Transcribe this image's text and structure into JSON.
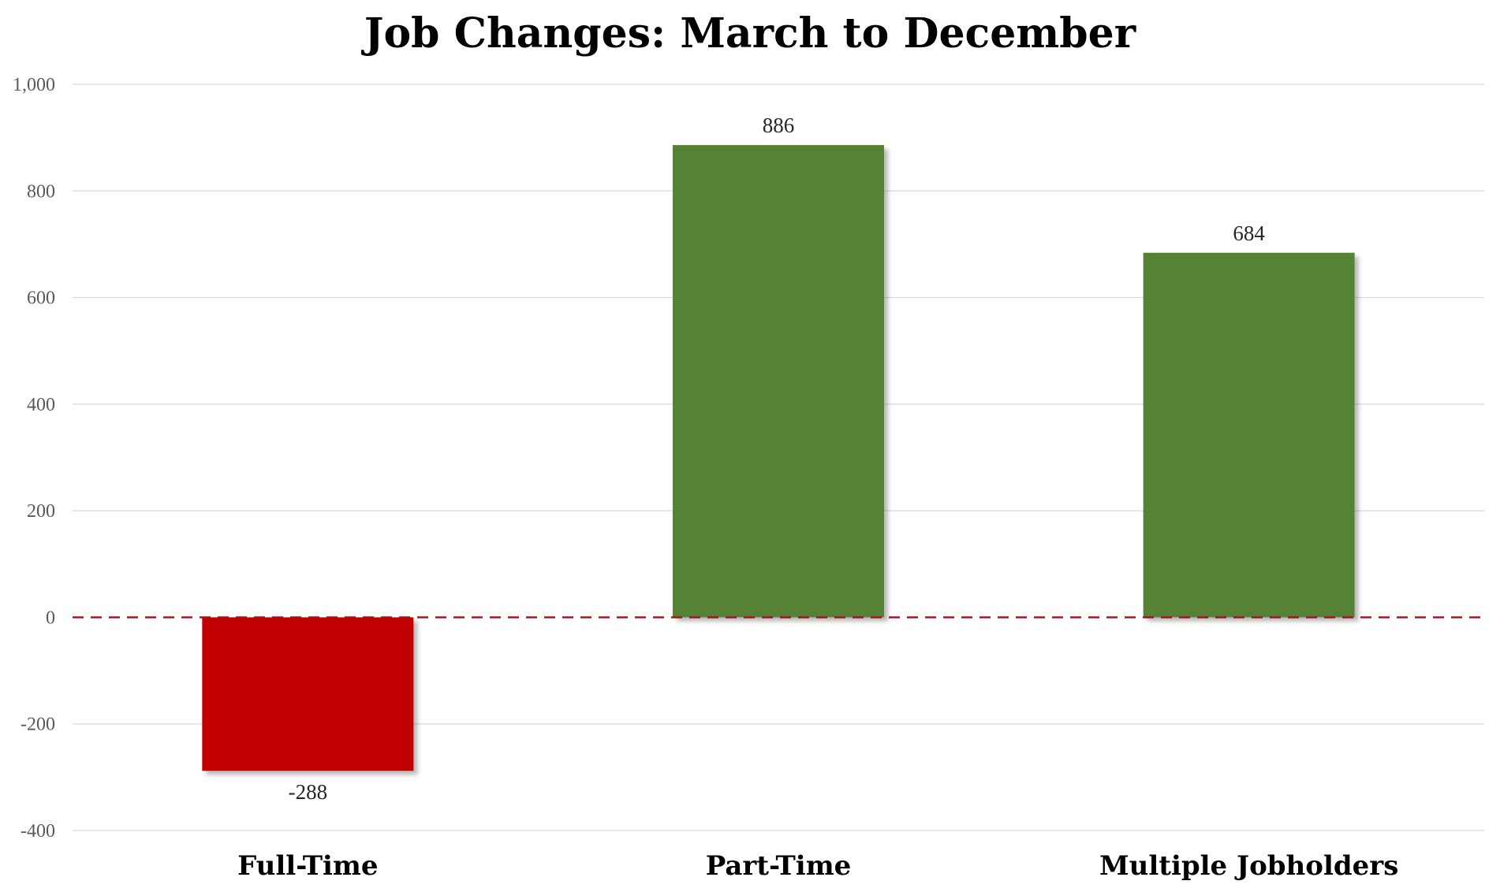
{
  "chart_data": {
    "type": "bar",
    "title": "Job Changes: March to December",
    "categories": [
      "Full-Time",
      "Part-Time",
      "Multiple Jobholders"
    ],
    "values": [
      -288,
      886,
      684
    ],
    "data_labels": [
      "-288",
      "886",
      "684"
    ],
    "bar_colors": [
      "#c00000",
      "#548235",
      "#548235"
    ],
    "ylim": [
      -400,
      1000
    ],
    "yticks": [
      1000,
      800,
      600,
      400,
      200,
      0,
      -200,
      -400
    ],
    "ytick_labels": [
      "1,000",
      "800",
      "600",
      "400",
      "200",
      "0",
      "-200",
      "-400"
    ],
    "xlabel": "",
    "ylabel": "",
    "grid": true,
    "legend": "none",
    "zero_line": {
      "style": "dashed",
      "color": "#a50f15"
    }
  }
}
